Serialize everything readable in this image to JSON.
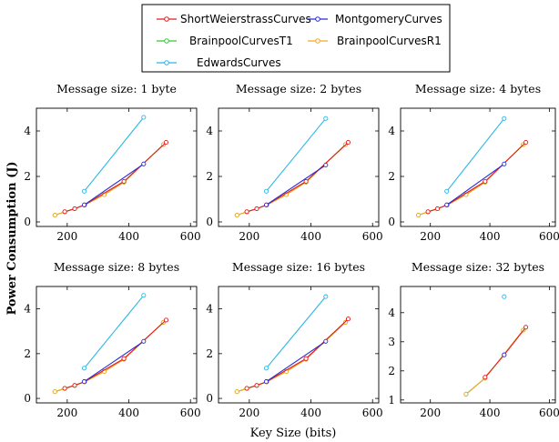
{
  "figure": {
    "ylabel": "Power Consumption (J)",
    "xlabel": "Key Size (bits)"
  },
  "legend": [
    {
      "name": "ShortWeierstrassCurves",
      "color": "#e41a1c"
    },
    {
      "name": "MontgomeryCurves",
      "color": "#2b2bd6"
    },
    {
      "name": "BrainpoolCurvesT1",
      "color": "#33cc33"
    },
    {
      "name": "BrainpoolCurvesR1",
      "color": "#f5a623"
    },
    {
      "name": "EdwardsCurves",
      "color": "#29b6e8"
    }
  ],
  "chart_data": [
    {
      "type": "line",
      "title": "Message size: 1 byte",
      "xlim": [
        100,
        620
      ],
      "ylim": [
        -0.2,
        5
      ],
      "xticks": [
        200,
        400,
        600
      ],
      "yticks": [
        0,
        2,
        4
      ],
      "series": [
        {
          "name": "ShortWeierstrassCurves",
          "x": [
            192,
            224,
            256,
            384,
            521
          ],
          "y": [
            0.45,
            0.58,
            0.75,
            1.78,
            3.5
          ]
        },
        {
          "name": "MontgomeryCurves",
          "x": [
            255,
            448
          ],
          "y": [
            0.75,
            2.55
          ]
        },
        {
          "name": "BrainpoolCurvesT1",
          "x": [
            160,
            192,
            224,
            256,
            320,
            384,
            512
          ],
          "y": [
            0.3,
            0.44,
            0.58,
            0.74,
            1.2,
            1.75,
            3.4
          ]
        },
        {
          "name": "BrainpoolCurvesR1",
          "x": [
            160,
            192,
            224,
            256,
            320,
            384,
            512
          ],
          "y": [
            0.3,
            0.44,
            0.58,
            0.74,
            1.2,
            1.75,
            3.4
          ]
        },
        {
          "name": "EdwardsCurves",
          "x": [
            255,
            448
          ],
          "y": [
            1.35,
            4.6
          ]
        }
      ]
    },
    {
      "type": "line",
      "title": "Message size: 2 bytes",
      "xlim": [
        100,
        620
      ],
      "ylim": [
        -0.2,
        5
      ],
      "xticks": [
        200,
        400,
        600
      ],
      "yticks": [
        0,
        2,
        4
      ],
      "series": [
        {
          "name": "ShortWeierstrassCurves",
          "x": [
            192,
            224,
            256,
            384,
            521
          ],
          "y": [
            0.45,
            0.58,
            0.75,
            1.78,
            3.5
          ]
        },
        {
          "name": "MontgomeryCurves",
          "x": [
            255,
            448
          ],
          "y": [
            0.75,
            2.5
          ]
        },
        {
          "name": "BrainpoolCurvesT1",
          "x": [
            160,
            192,
            224,
            256,
            320,
            384,
            512
          ],
          "y": [
            0.3,
            0.44,
            0.58,
            0.74,
            1.2,
            1.75,
            3.4
          ]
        },
        {
          "name": "BrainpoolCurvesR1",
          "x": [
            160,
            192,
            224,
            256,
            320,
            384,
            512
          ],
          "y": [
            0.3,
            0.44,
            0.58,
            0.74,
            1.2,
            1.75,
            3.4
          ]
        },
        {
          "name": "EdwardsCurves",
          "x": [
            255,
            448
          ],
          "y": [
            1.35,
            4.55
          ]
        }
      ]
    },
    {
      "type": "line",
      "title": "Message size: 4 bytes",
      "xlim": [
        100,
        620
      ],
      "ylim": [
        -0.2,
        5
      ],
      "xticks": [
        200,
        400,
        600
      ],
      "yticks": [
        0,
        2,
        4
      ],
      "series": [
        {
          "name": "ShortWeierstrassCurves",
          "x": [
            192,
            224,
            256,
            384,
            521
          ],
          "y": [
            0.45,
            0.58,
            0.75,
            1.78,
            3.5
          ]
        },
        {
          "name": "MontgomeryCurves",
          "x": [
            255,
            448
          ],
          "y": [
            0.75,
            2.55
          ]
        },
        {
          "name": "BrainpoolCurvesT1",
          "x": [
            160,
            192,
            224,
            256,
            320,
            384,
            512
          ],
          "y": [
            0.3,
            0.44,
            0.58,
            0.74,
            1.2,
            1.75,
            3.4
          ]
        },
        {
          "name": "BrainpoolCurvesR1",
          "x": [
            160,
            192,
            224,
            256,
            320,
            384,
            512
          ],
          "y": [
            0.3,
            0.44,
            0.58,
            0.74,
            1.2,
            1.75,
            3.4
          ]
        },
        {
          "name": "EdwardsCurves",
          "x": [
            255,
            448
          ],
          "y": [
            1.35,
            4.55
          ]
        }
      ]
    },
    {
      "type": "line",
      "title": "Message size: 8 bytes",
      "xlim": [
        100,
        620
      ],
      "ylim": [
        -0.2,
        5
      ],
      "xticks": [
        200,
        400,
        600
      ],
      "yticks": [
        0,
        2,
        4
      ],
      "series": [
        {
          "name": "ShortWeierstrassCurves",
          "x": [
            192,
            224,
            256,
            384,
            521
          ],
          "y": [
            0.45,
            0.58,
            0.75,
            1.78,
            3.5
          ]
        },
        {
          "name": "MontgomeryCurves",
          "x": [
            255,
            448
          ],
          "y": [
            0.75,
            2.55
          ]
        },
        {
          "name": "BrainpoolCurvesT1",
          "x": [
            160,
            192,
            224,
            256,
            320,
            384,
            512
          ],
          "y": [
            0.3,
            0.44,
            0.58,
            0.74,
            1.2,
            1.75,
            3.4
          ]
        },
        {
          "name": "BrainpoolCurvesR1",
          "x": [
            160,
            192,
            224,
            256,
            320,
            384,
            512
          ],
          "y": [
            0.3,
            0.44,
            0.58,
            0.74,
            1.2,
            1.75,
            3.4
          ]
        },
        {
          "name": "EdwardsCurves",
          "x": [
            255,
            448
          ],
          "y": [
            1.35,
            4.6
          ]
        }
      ]
    },
    {
      "type": "line",
      "title": "Message size: 16 bytes",
      "xlim": [
        100,
        620
      ],
      "ylim": [
        -0.2,
        5
      ],
      "xticks": [
        200,
        400,
        600
      ],
      "yticks": [
        0,
        2,
        4
      ],
      "series": [
        {
          "name": "ShortWeierstrassCurves",
          "x": [
            192,
            224,
            256,
            384,
            521
          ],
          "y": [
            0.45,
            0.58,
            0.75,
            1.78,
            3.55
          ]
        },
        {
          "name": "MontgomeryCurves",
          "x": [
            255,
            448
          ],
          "y": [
            0.75,
            2.55
          ]
        },
        {
          "name": "BrainpoolCurvesT1",
          "x": [
            160,
            192,
            224,
            256,
            320,
            384,
            512
          ],
          "y": [
            0.3,
            0.44,
            0.58,
            0.74,
            1.2,
            1.75,
            3.4
          ]
        },
        {
          "name": "BrainpoolCurvesR1",
          "x": [
            160,
            192,
            224,
            256,
            320,
            384,
            512
          ],
          "y": [
            0.3,
            0.44,
            0.58,
            0.74,
            1.2,
            1.75,
            3.4
          ]
        },
        {
          "name": "EdwardsCurves",
          "x": [
            255,
            448
          ],
          "y": [
            1.35,
            4.55
          ]
        }
      ]
    },
    {
      "type": "line",
      "title": "Message size: 32 bytes",
      "xlim": [
        100,
        620
      ],
      "ylim": [
        0.9,
        4.9
      ],
      "xticks": [
        200,
        400,
        600
      ],
      "yticks": [
        1,
        2,
        3,
        4
      ],
      "series": [
        {
          "name": "ShortWeierstrassCurves",
          "x": [
            384,
            448,
            521
          ],
          "y": [
            1.78,
            2.55,
            3.5
          ]
        },
        {
          "name": "MontgomeryCurves",
          "x": [
            448
          ],
          "y": [
            2.55
          ]
        },
        {
          "name": "BrainpoolCurvesT1",
          "x": [
            320,
            384,
            512
          ],
          "y": [
            1.2,
            1.75,
            3.4
          ]
        },
        {
          "name": "BrainpoolCurvesR1",
          "x": [
            320,
            384,
            512
          ],
          "y": [
            1.2,
            1.75,
            3.4
          ]
        },
        {
          "name": "EdwardsCurves",
          "x": [
            448
          ],
          "y": [
            4.55
          ]
        }
      ]
    }
  ]
}
